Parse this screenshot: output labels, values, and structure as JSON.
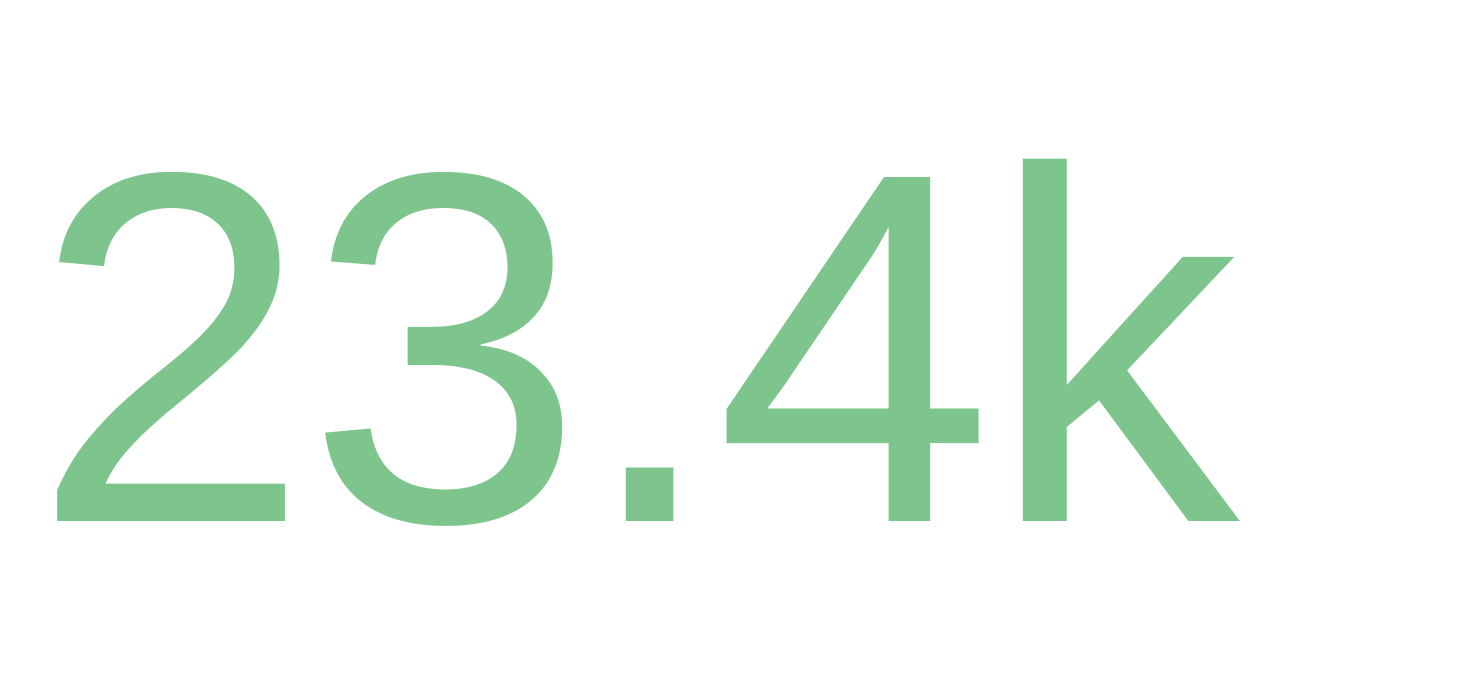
{
  "stat": {
    "value": "23.4k",
    "color": "#7dc58c"
  }
}
